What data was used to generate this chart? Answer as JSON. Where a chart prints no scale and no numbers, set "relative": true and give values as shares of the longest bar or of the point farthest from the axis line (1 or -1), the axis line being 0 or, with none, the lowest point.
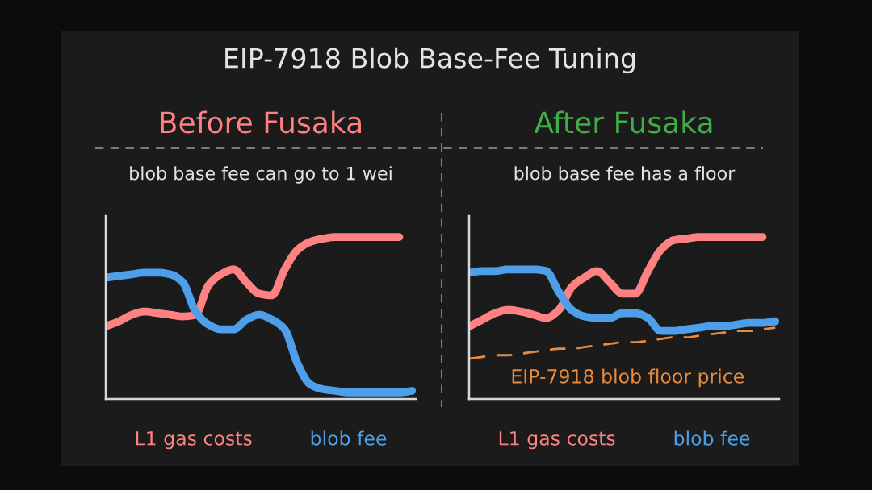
{
  "chart_data": [
    {
      "type": "other",
      "title": "EIP-7918 Blob Base-Fee Tuning"
    },
    {
      "type": "line",
      "title": "Before Fusaka",
      "subtitle": "blob base fee can go to 1 wei",
      "relative": true,
      "legend": "bottom",
      "categories": [
        null,
        null,
        null,
        null,
        null,
        null,
        null,
        null,
        null,
        null,
        null,
        null,
        null,
        null,
        null,
        null,
        null,
        null,
        null,
        null,
        null,
        null,
        null,
        null,
        null
      ],
      "series": [
        {
          "name": "L1 gas costs",
          "color": "#ff8282",
          "values": [
            0.45,
            0.48,
            0.52,
            0.54,
            0.53,
            0.52,
            0.51,
            0.52,
            0.7,
            0.77,
            0.8,
            0.72,
            0.65,
            0.64,
            0.8,
            0.92,
            0.97,
            0.99,
            1.0,
            1.0,
            1.0,
            1.0,
            1.0,
            1.0,
            null
          ]
        },
        {
          "name": "blob fee",
          "color": "#4c9fe8",
          "values": [
            0.75,
            0.76,
            0.77,
            0.78,
            0.78,
            0.77,
            0.72,
            0.54,
            0.46,
            0.43,
            0.43,
            0.49,
            0.52,
            0.49,
            0.43,
            0.22,
            0.09,
            0.06,
            0.05,
            0.04,
            0.04,
            0.04,
            0.04,
            0.04,
            0.05
          ]
        }
      ]
    },
    {
      "type": "line",
      "title": "After Fusaka",
      "subtitle": "blob base fee has a floor",
      "relative": true,
      "legend": "bottom",
      "categories": [
        null,
        null,
        null,
        null,
        null,
        null,
        null,
        null,
        null,
        null,
        null,
        null,
        null,
        null,
        null,
        null,
        null,
        null,
        null,
        null,
        null,
        null,
        null,
        null,
        null
      ],
      "series": [
        {
          "name": "L1 gas costs",
          "color": "#ff8282",
          "values": [
            0.45,
            0.49,
            0.53,
            0.55,
            0.54,
            0.52,
            0.5,
            0.55,
            0.69,
            0.75,
            0.79,
            0.72,
            0.65,
            0.65,
            0.79,
            0.92,
            0.98,
            0.99,
            1.0,
            1.0,
            1.0,
            1.0,
            1.0,
            1.0,
            null
          ]
        },
        {
          "name": "blob fee",
          "color": "#4c9fe8",
          "values": [
            0.78,
            0.79,
            0.79,
            0.8,
            0.8,
            0.8,
            0.79,
            0.66,
            0.55,
            0.51,
            0.5,
            0.5,
            0.53,
            0.53,
            0.5,
            0.42,
            0.42,
            0.43,
            0.44,
            0.45,
            0.45,
            0.46,
            0.47,
            0.47,
            0.48
          ]
        },
        {
          "name": "EIP-7918 blob floor price",
          "color": "#ea8a3c",
          "line_style": "dashed",
          "values": [
            0.25,
            0.26,
            0.27,
            0.27,
            0.28,
            0.29,
            0.3,
            0.31,
            0.31,
            0.32,
            0.33,
            0.34,
            0.35,
            0.35,
            0.36,
            0.37,
            0.38,
            0.38,
            0.39,
            0.4,
            0.41,
            0.42,
            0.42,
            0.43,
            0.44
          ]
        }
      ]
    }
  ]
}
